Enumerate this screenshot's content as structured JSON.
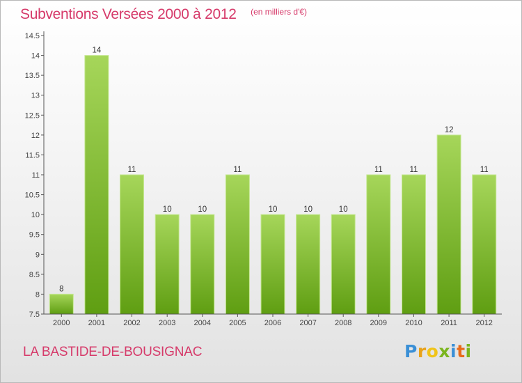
{
  "colors": {
    "title": "#d63a6a",
    "bar_top": "#a6d65a",
    "bar_bottom": "#5f9e12",
    "axis": "#555555"
  },
  "header": {
    "title": "Subventions Versées 2000 à 2012",
    "unit": "(en milliers d'€)"
  },
  "footer": {
    "commune": "LA BASTIDE-DE-BOUSIGNAC",
    "logo_letters": [
      "P",
      "r",
      "o",
      "x",
      "i",
      "t",
      "i"
    ],
    "logo_colors": [
      "#3a8fd6",
      "#e8a21a",
      "#f0c419",
      "#7ab51d",
      "#3a8fd6",
      "#e86a1a",
      "#7ab51d"
    ]
  },
  "chart_data": {
    "type": "bar",
    "title": "Subventions Versées 2000 à 2012",
    "categories": [
      "2000",
      "2001",
      "2002",
      "2003",
      "2004",
      "2005",
      "2006",
      "2007",
      "2008",
      "2009",
      "2010",
      "2011",
      "2012"
    ],
    "values": [
      8,
      14,
      11,
      10,
      10,
      11,
      10,
      10,
      10,
      11,
      11,
      12,
      11
    ],
    "ylim": [
      7.5,
      14.5
    ],
    "yticks": [
      "7.5",
      "8",
      "8.5",
      "9",
      "9.5",
      "10",
      "10.5",
      "11",
      "11.5",
      "12",
      "12.5",
      "13",
      "13.5",
      "14",
      "14.5"
    ],
    "grid": false,
    "xlabel": "",
    "ylabel": ""
  }
}
